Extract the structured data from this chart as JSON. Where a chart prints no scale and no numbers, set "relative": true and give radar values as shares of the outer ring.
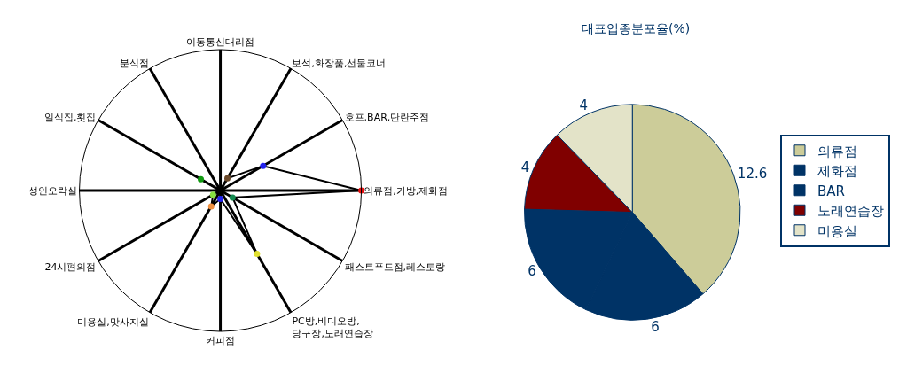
{
  "chart_data": [
    {
      "type": "radar",
      "relative": true,
      "marker": "circle",
      "categories": [
        "이동통신대리점",
        "보석,화장품,선물코너",
        "호프,BAR,단란주점",
        "의류점,가방,제화점",
        "패스트푸드점,레스토랑",
        "PC방,비디오방, 당구장,노래연습장",
        "커피점",
        "미용실,맛사지실",
        "24시편의점",
        "성인오락실",
        "일식집,횟집",
        "분식점"
      ],
      "series": [
        {
          "color": "#000000",
          "colors": [
            "#000000",
            "#6b4a2b",
            "#2222ee",
            "#e81010",
            "#138a50",
            "#e0e030",
            "#2222ee",
            "#f09040",
            "#88e040",
            "#000000",
            "#119911",
            "#000000"
          ],
          "values": [
            0,
            0.1,
            0.35,
            1,
            0.1,
            0.52,
            0.06,
            0.13,
            0.06,
            0,
            0.16,
            0
          ]
        }
      ]
    },
    {
      "type": "pie",
      "title": "대표업종분포율(%)",
      "data_labels": true,
      "legend": "right",
      "categories": [
        "의류점",
        "제화점",
        "BAR",
        "노래연습장",
        "미용실"
      ],
      "values": [
        12.6,
        6,
        6,
        4,
        4
      ],
      "colors": [
        "#cccc99",
        "#003366",
        "#003366",
        "#800000",
        "#e3e3c8"
      ]
    }
  ]
}
